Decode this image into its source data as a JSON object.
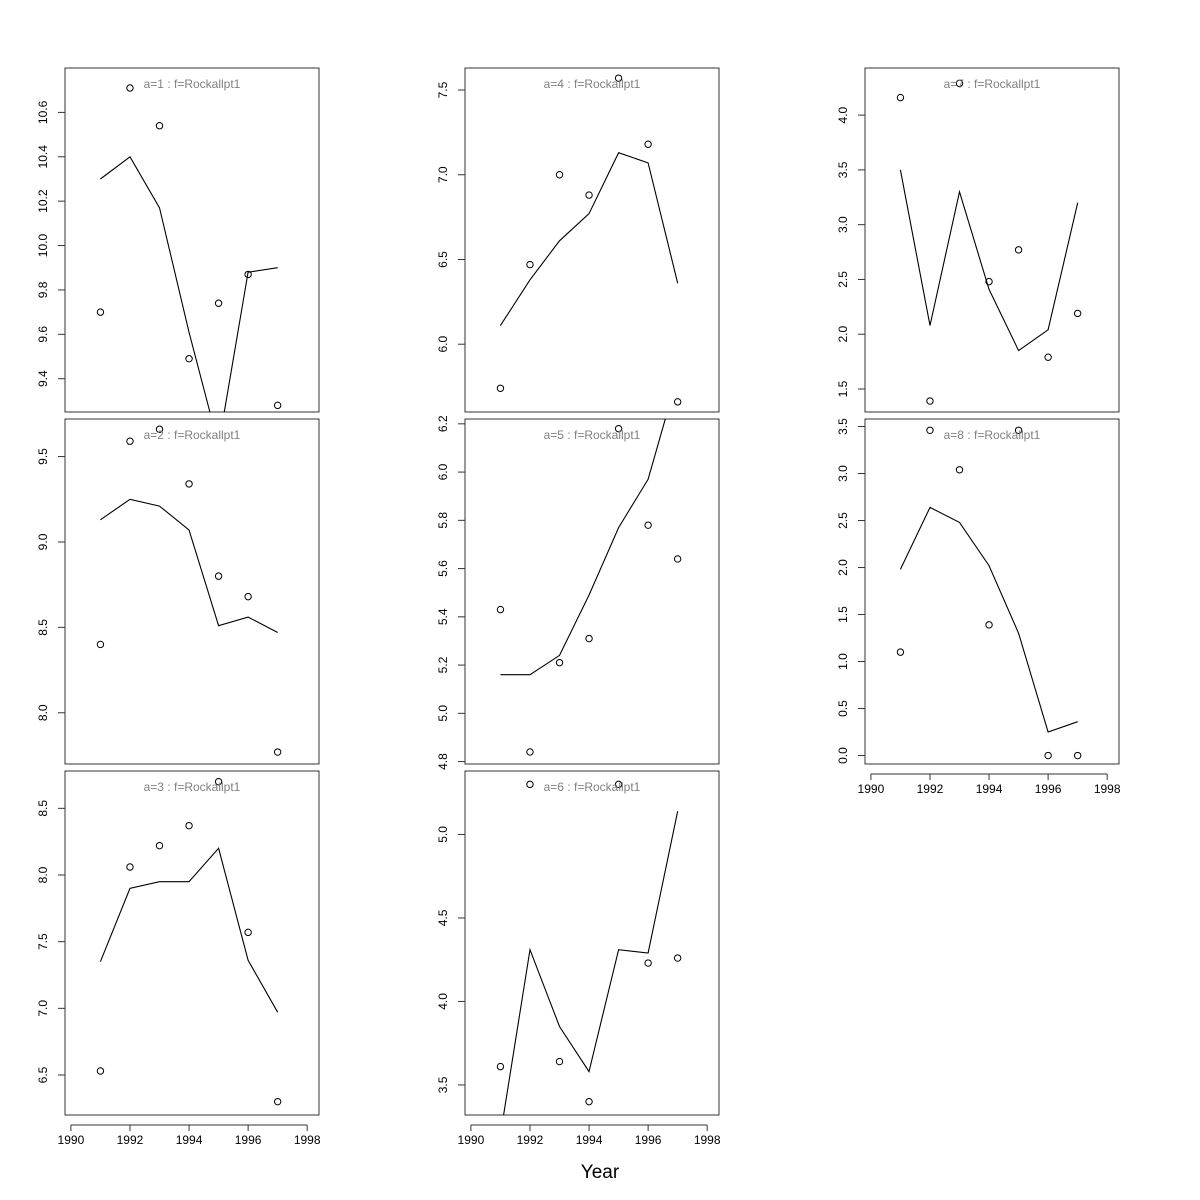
{
  "figure": {
    "xlabel": "Year",
    "colors": {
      "frame": "#333333",
      "line": "#000000",
      "points": "#000000",
      "panel_title": "#808080"
    }
  },
  "chart_data": [
    {
      "type": "line",
      "title": "a=1  :  f=Rockallpt1",
      "x": [
        1991,
        1992,
        1993,
        1994,
        1995,
        1996,
        1997
      ],
      "series": [
        {
          "kind": "points",
          "values": [
            9.7,
            10.71,
            10.54,
            9.49,
            9.74,
            9.87,
            9.28
          ]
        },
        {
          "kind": "line",
          "values": [
            10.3,
            10.4,
            10.17,
            9.61,
            9.1,
            9.88,
            9.9
          ]
        }
      ],
      "xlim": [
        1989.8,
        1998.4
      ],
      "ylim": [
        9.25,
        10.8
      ],
      "xticks": [
        1990,
        1992,
        1994,
        1996,
        1998
      ],
      "xtick_labels_shown": false,
      "yticks": [
        9.4,
        9.6,
        9.8,
        10.0,
        10.2,
        10.4,
        10.6
      ]
    },
    {
      "type": "line",
      "title": "a=2  :  f=Rockallpt1",
      "x": [
        1991,
        1992,
        1993,
        1994,
        1995,
        1996,
        1997
      ],
      "series": [
        {
          "kind": "points",
          "values": [
            8.4,
            9.59,
            9.66,
            9.34,
            8.8,
            8.68,
            7.77
          ]
        },
        {
          "kind": "line",
          "values": [
            9.13,
            9.25,
            9.21,
            9.07,
            8.51,
            8.56,
            8.47
          ]
        }
      ],
      "xlim": [
        1989.8,
        1998.4
      ],
      "ylim": [
        7.7,
        9.72
      ],
      "xticks": [
        1990,
        1992,
        1994,
        1996,
        1998
      ],
      "xtick_labels_shown": false,
      "yticks": [
        8.0,
        8.5,
        9.0,
        9.5
      ]
    },
    {
      "type": "line",
      "title": "a=3  :  f=Rockallpt1",
      "x": [
        1991,
        1992,
        1993,
        1994,
        1995,
        1996,
        1997
      ],
      "series": [
        {
          "kind": "points",
          "values": [
            6.53,
            8.06,
            8.22,
            8.37,
            8.7,
            7.57,
            6.3
          ]
        },
        {
          "kind": "line",
          "values": [
            7.35,
            7.9,
            7.95,
            7.95,
            8.2,
            7.36,
            6.97
          ]
        }
      ],
      "xlim": [
        1989.8,
        1998.4
      ],
      "ylim": [
        6.2,
        8.78
      ],
      "xticks": [
        1990,
        1992,
        1994,
        1996,
        1998
      ],
      "xtick_labels_shown": true,
      "yticks": [
        6.5,
        7.0,
        7.5,
        8.0,
        8.5
      ]
    },
    {
      "type": "line",
      "title": "a=4  :  f=Rockallpt1",
      "x": [
        1991,
        1992,
        1993,
        1994,
        1995,
        1996,
        1997
      ],
      "series": [
        {
          "kind": "points",
          "values": [
            5.74,
            6.47,
            7.0,
            6.88,
            7.57,
            7.18,
            5.66
          ]
        },
        {
          "kind": "line",
          "values": [
            6.11,
            6.38,
            6.61,
            6.77,
            7.13,
            7.07,
            6.36
          ]
        }
      ],
      "xlim": [
        1989.8,
        1998.4
      ],
      "ylim": [
        5.6,
        7.63
      ],
      "xticks": [
        1990,
        1992,
        1994,
        1996,
        1998
      ],
      "xtick_labels_shown": false,
      "yticks": [
        6.0,
        6.5,
        7.0,
        7.5
      ]
    },
    {
      "type": "line",
      "title": "a=5  :  f=Rockallpt1",
      "x": [
        1991,
        1992,
        1993,
        1994,
        1995,
        1996,
        1997
      ],
      "series": [
        {
          "kind": "points",
          "values": [
            5.43,
            4.84,
            5.21,
            5.31,
            6.18,
            5.78,
            5.64
          ]
        },
        {
          "kind": "line",
          "values": [
            5.16,
            5.16,
            5.24,
            5.49,
            5.77,
            5.97,
            6.4
          ]
        }
      ],
      "xlim": [
        1989.8,
        1998.4
      ],
      "ylim": [
        4.79,
        6.22
      ],
      "xticks": [
        1990,
        1992,
        1994,
        1996,
        1998
      ],
      "xtick_labels_shown": false,
      "yticks": [
        4.8,
        5.0,
        5.2,
        5.4,
        5.6,
        5.8,
        6.0,
        6.2
      ]
    },
    {
      "type": "line",
      "title": "a=6  :  f=Rockallpt1",
      "x": [
        1991,
        1992,
        1993,
        1994,
        1995,
        1996,
        1997
      ],
      "series": [
        {
          "kind": "points",
          "values": [
            3.61,
            5.3,
            3.64,
            3.4,
            5.3,
            4.23,
            4.26
          ]
        },
        {
          "kind": "line",
          "values": [
            3.2,
            4.31,
            3.85,
            3.58,
            4.31,
            4.29,
            5.14
          ]
        }
      ],
      "xlim": [
        1989.8,
        1998.4
      ],
      "ylim": [
        3.32,
        5.38
      ],
      "xticks": [
        1990,
        1992,
        1994,
        1996,
        1998
      ],
      "xtick_labels_shown": true,
      "yticks": [
        3.5,
        4.0,
        4.5,
        5.0
      ]
    },
    {
      "type": "line",
      "title": "a=7  :  f=Rockallpt1",
      "x": [
        1991,
        1992,
        1993,
        1994,
        1995,
        1996,
        1997
      ],
      "series": [
        {
          "kind": "points",
          "values": [
            4.16,
            1.39,
            4.29,
            2.48,
            2.77,
            1.79,
            2.19
          ]
        },
        {
          "kind": "line",
          "values": [
            3.5,
            2.08,
            3.3,
            2.41,
            1.85,
            2.04,
            3.2
          ]
        }
      ],
      "xlim": [
        1989.8,
        1998.4
      ],
      "ylim": [
        1.29,
        4.43
      ],
      "xticks": [
        1990,
        1992,
        1994,
        1996,
        1998
      ],
      "xtick_labels_shown": false,
      "yticks": [
        1.5,
        2.0,
        2.5,
        3.0,
        3.5,
        4.0
      ]
    },
    {
      "type": "line",
      "title": "a=8  :  f=Rockallpt1",
      "x": [
        1991,
        1992,
        1993,
        1994,
        1995,
        1996,
        1997
      ],
      "series": [
        {
          "kind": "points",
          "values": [
            1.1,
            3.46,
            3.04,
            1.39,
            3.46,
            0.0,
            0.0
          ]
        },
        {
          "kind": "line",
          "values": [
            1.98,
            2.64,
            2.48,
            2.02,
            1.3,
            0.25,
            0.36
          ]
        }
      ],
      "xlim": [
        1989.8,
        1998.4
      ],
      "ylim": [
        -0.09,
        3.58
      ],
      "xticks": [
        1990,
        1992,
        1994,
        1996,
        1998
      ],
      "xtick_labels_shown": true,
      "yticks": [
        0.0,
        0.5,
        1.0,
        1.5,
        2.0,
        2.5,
        3.0,
        3.5
      ]
    }
  ]
}
